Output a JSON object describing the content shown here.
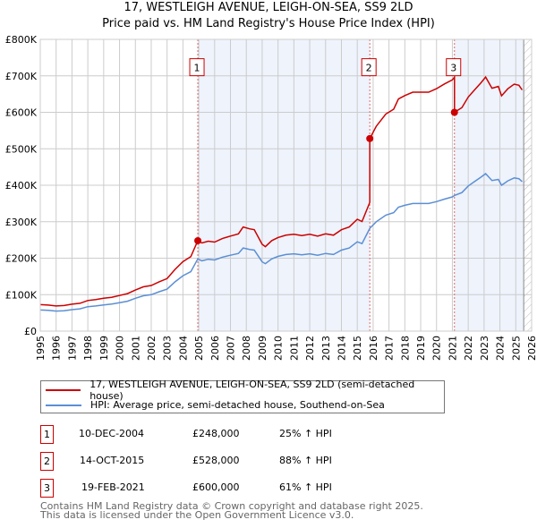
{
  "title_line1": "17, WESTLEIGH AVENUE, LEIGH-ON-SEA, SS9 2LD",
  "title_line2": "Price paid vs. HM Land Registry's House Price Index (HPI)",
  "colors": {
    "property": "#cc0000",
    "hpi": "#5b8fd4",
    "shade": "#eef3fc",
    "grid": "#cccccc"
  },
  "chart_data": {
    "type": "line",
    "ylabel": "",
    "xlabel": "",
    "xlim": [
      1995,
      2026
    ],
    "ylim": [
      0,
      800000
    ],
    "x_ticks": [
      "1995",
      "1996",
      "1997",
      "1998",
      "1999",
      "2000",
      "2001",
      "2002",
      "2003",
      "2004",
      "2005",
      "2006",
      "2007",
      "2008",
      "2009",
      "2010",
      "2011",
      "2012",
      "2013",
      "2014",
      "2015",
      "2016",
      "2017",
      "2018",
      "2019",
      "2020",
      "2021",
      "2022",
      "2023",
      "2024",
      "2025",
      "2026"
    ],
    "y_ticks": [
      {
        "v": 0,
        "label": "£0"
      },
      {
        "v": 100000,
        "label": "£100K"
      },
      {
        "v": 200000,
        "label": "£200K"
      },
      {
        "v": 300000,
        "label": "£300K"
      },
      {
        "v": 400000,
        "label": "£400K"
      },
      {
        "v": 500000,
        "label": "£500K"
      },
      {
        "v": 600000,
        "label": "£600K"
      },
      {
        "v": 700000,
        "label": "£700K"
      },
      {
        "v": 800000,
        "label": "£800K"
      }
    ],
    "grid": true,
    "data_end_year": 2025.5,
    "series": [
      {
        "name": "17, WESTLEIGH AVENUE, LEIGH-ON-SEA, SS9 2LD (semi-detached house)",
        "derived_from_hpi_and_sales": true
      },
      {
        "name": "HPI: Average price, semi-detached house, Southend-on-Sea",
        "x": [
          1995,
          1995.5,
          1996,
          1996.5,
          1997,
          1997.5,
          1998,
          1998.5,
          1999,
          1999.5,
          2000,
          2000.5,
          2001,
          2001.5,
          2002,
          2002.5,
          2003,
          2003.5,
          2004,
          2004.5,
          2004.94,
          2005.2,
          2005.6,
          2006,
          2006.5,
          2007,
          2007.5,
          2007.8,
          2008.2,
          2008.5,
          2009,
          2009.2,
          2009.6,
          2010,
          2010.5,
          2011,
          2011.5,
          2012,
          2012.5,
          2013,
          2013.5,
          2014,
          2014.5,
          2015,
          2015.3,
          2015.79,
          2016.2,
          2016.8,
          2017.3,
          2017.6,
          2018,
          2018.5,
          2019,
          2019.5,
          2020,
          2020.5,
          2021,
          2021.13,
          2021.6,
          2022,
          2022.4,
          2022.8,
          2023.1,
          2023.5,
          2023.9,
          2024.1,
          2024.5,
          2024.9,
          2025.2,
          2025.4
        ],
        "values": [
          58000,
          57000,
          55000,
          56000,
          59000,
          61000,
          67000,
          69000,
          72000,
          74000,
          78000,
          82000,
          90000,
          97000,
          100000,
          108000,
          115000,
          135000,
          152000,
          163000,
          198000,
          193000,
          197000,
          195000,
          203000,
          208000,
          213000,
          228000,
          224000,
          222000,
          190000,
          185000,
          198000,
          205000,
          210000,
          212000,
          209000,
          212000,
          208000,
          213000,
          210000,
          222000,
          228000,
          245000,
          240000,
          282000,
          300000,
          318000,
          325000,
          340000,
          345000,
          350000,
          350000,
          350000,
          355000,
          362000,
          368000,
          372000,
          380000,
          398000,
          410000,
          422000,
          432000,
          413000,
          416000,
          400000,
          412000,
          420000,
          418000,
          410000
        ]
      }
    ],
    "sales": [
      {
        "n": "1",
        "year": 2004.94,
        "price": 248000
      },
      {
        "n": "2",
        "year": 2015.79,
        "price": 528000
      },
      {
        "n": "3",
        "year": 2021.13,
        "price": 600000
      }
    ]
  },
  "legend": {
    "property": "17, WESTLEIGH AVENUE, LEIGH-ON-SEA, SS9 2LD (semi-detached house)",
    "hpi": "HPI: Average price, semi-detached house, Southend-on-Sea"
  },
  "transactions": [
    {
      "n": "1",
      "date": "10-DEC-2004",
      "price": "£248,000",
      "hpi": "25% ↑ HPI"
    },
    {
      "n": "2",
      "date": "14-OCT-2015",
      "price": "£528,000",
      "hpi": "88% ↑ HPI"
    },
    {
      "n": "3",
      "date": "19-FEB-2021",
      "price": "£600,000",
      "hpi": "61% ↑ HPI"
    }
  ],
  "footer": {
    "line1": "Contains HM Land Registry data © Crown copyright and database right 2025.",
    "line2": "This data is licensed under the Open Government Licence v3.0."
  }
}
